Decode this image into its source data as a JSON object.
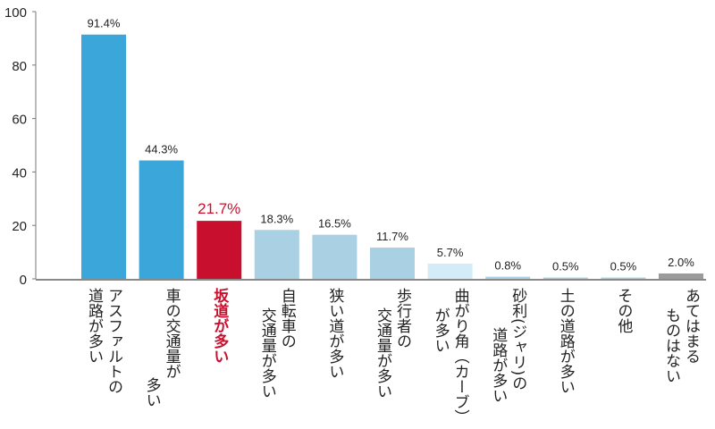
{
  "chart_data": {
    "type": "bar",
    "title": "",
    "xlabel": "",
    "ylabel": "",
    "ylim": [
      0,
      100
    ],
    "yticks": [
      0,
      20,
      40,
      60,
      80,
      100
    ],
    "grid": false,
    "categories": [
      [
        "アスファルトの",
        "道路が多い"
      ],
      [
        "車の交通量が",
        "多い"
      ],
      [
        "坂道が多い"
      ],
      [
        "自転車の",
        "交通量が多い"
      ],
      [
        "狭い道が多い"
      ],
      [
        "歩行者の",
        "交通量が多い"
      ],
      [
        "曲がり角（カーブ）",
        "が多い"
      ],
      [
        "砂利(ジャリ)の",
        "道路が多い"
      ],
      [
        "土の道路が多い"
      ],
      [
        "その他"
      ],
      [
        "あてはまる",
        "ものはない"
      ]
    ],
    "values": [
      91.4,
      44.3,
      21.7,
      18.3,
      16.5,
      11.7,
      5.7,
      0.8,
      0.5,
      0.5,
      2.0
    ],
    "value_labels": [
      "91.4%",
      "44.3%",
      "21.7%",
      "18.3%",
      "16.5%",
      "11.7%",
      "5.7%",
      "0.8%",
      "0.5%",
      "0.5%",
      "2.0%"
    ],
    "colors": [
      "#3aa6da",
      "#3aa6da",
      "#c8102e",
      "#a9d1e3",
      "#a9d1e3",
      "#a9d1e3",
      "#d3ecf8",
      "#a9d1e3",
      "#a9d1e3",
      "#a9d1e3",
      "#9b9b9b"
    ],
    "highlight_index": 2,
    "highlight_color": "#c8102e"
  }
}
